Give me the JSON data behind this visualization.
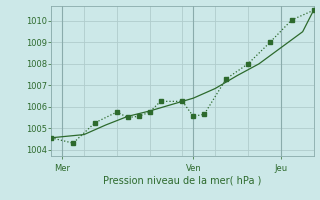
{
  "xlabel": "Pression niveau de la mer( hPa )",
  "bg_color": "#cce8e8",
  "grid_color": "#b0cccc",
  "line_color": "#2d6a2d",
  "vline_color": "#8aabab",
  "ylim": [
    1003.7,
    1010.7
  ],
  "yticks": [
    1004,
    1005,
    1006,
    1007,
    1008,
    1009,
    1010
  ],
  "xlim": [
    0,
    24
  ],
  "xtick_labels": [
    "Mer",
    "Ven",
    "Jeu"
  ],
  "xtick_positions": [
    1,
    13,
    21
  ],
  "vline_positions": [
    1,
    13,
    21
  ],
  "line1_x": [
    0,
    2,
    4,
    6,
    7,
    8,
    9,
    10,
    12,
    13,
    14,
    16,
    18,
    20,
    22,
    24
  ],
  "line1_y": [
    1004.55,
    1004.3,
    1005.25,
    1005.75,
    1005.5,
    1005.55,
    1005.75,
    1006.25,
    1006.25,
    1005.55,
    1005.65,
    1007.3,
    1008.0,
    1009.0,
    1010.05,
    1010.5
  ],
  "line2_x": [
    0,
    3,
    5,
    7,
    9,
    11,
    13,
    15,
    17,
    19,
    21,
    23,
    24
  ],
  "line2_y": [
    1004.55,
    1004.7,
    1005.15,
    1005.55,
    1005.8,
    1006.1,
    1006.4,
    1006.85,
    1007.45,
    1008.0,
    1008.75,
    1009.5,
    1010.5
  ],
  "marker_size": 2.5,
  "line_width": 0.9,
  "tick_fontsize": 6,
  "xlabel_fontsize": 7
}
